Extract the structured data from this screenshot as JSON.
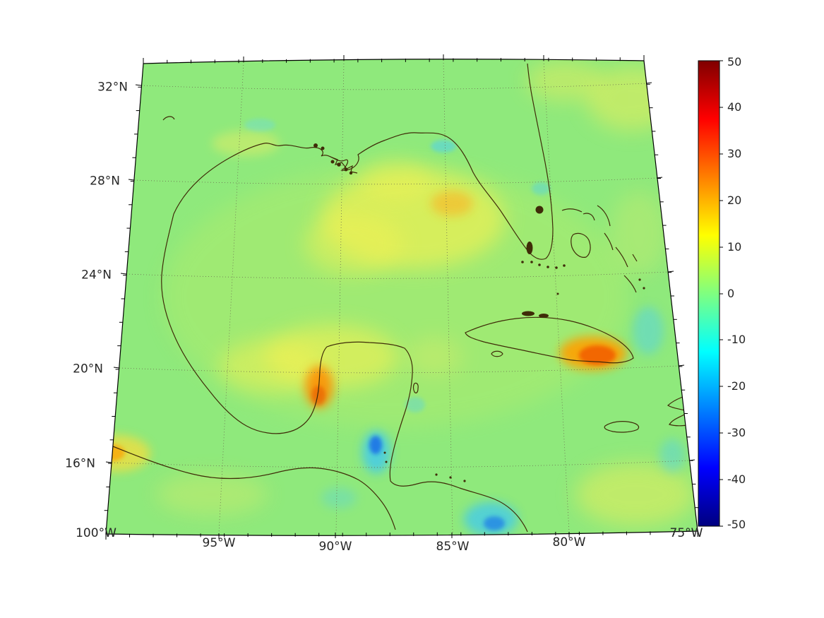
{
  "figure": {
    "type": "geographic heatmap with colorbar",
    "background_color": "#ffffff"
  },
  "map_axes": {
    "x_tick_labels": [
      "100°W",
      "95°W",
      "90°W",
      "85°W",
      "80°W",
      "75°W"
    ],
    "y_tick_labels": [
      "32°N",
      "28°N",
      "24°N",
      "20°N",
      "16°N"
    ]
  },
  "colorbar": {
    "tick_labels": [
      "50",
      "40",
      "30",
      "20",
      "10",
      "0",
      "-10",
      "-20",
      "-30",
      "-40",
      "-50"
    ],
    "colormap": "jet",
    "vmin": -50,
    "vmax": 50
  },
  "chart_data": {
    "type": "heatmap",
    "region": "Gulf of Mexico and western Caribbean (conic map projection)",
    "lon_gridlines_deg_w": [
      100,
      95,
      90,
      85,
      80,
      75
    ],
    "lat_gridlines_deg_n": [
      32,
      28,
      24,
      20,
      16
    ],
    "value_range": [
      -50,
      50
    ],
    "colorbar_ticks": [
      50,
      40,
      30,
      20,
      10,
      0,
      -10,
      -20,
      -30,
      -40,
      -50
    ],
    "colormap": "jet",
    "background_field_value": 3,
    "notable_features": [
      {
        "description": "broad positive anomaly in central Gulf near 26N 87W",
        "approx_value": 10
      },
      {
        "description": "positive anomaly in Bay of Campeche west of Yucatan",
        "approx_value": 12
      },
      {
        "description": "strong positive spot on coast near 19.5N 90.5W",
        "approx_value": 22
      },
      {
        "description": "strong positive anomaly over south-central Cuba",
        "approx_value": 24
      },
      {
        "description": "negative anomaly along Belize coast near 17.5N 88W",
        "approx_value": -20
      },
      {
        "description": "negative anomaly at bottom edge near 85.5W (Honduras coast)",
        "approx_value": -15
      },
      {
        "description": "positive band along upper-right and lower-right map edges",
        "approx_value": 10
      },
      {
        "description": "positive spot at left edge near 16N",
        "approx_value": 15
      }
    ]
  }
}
